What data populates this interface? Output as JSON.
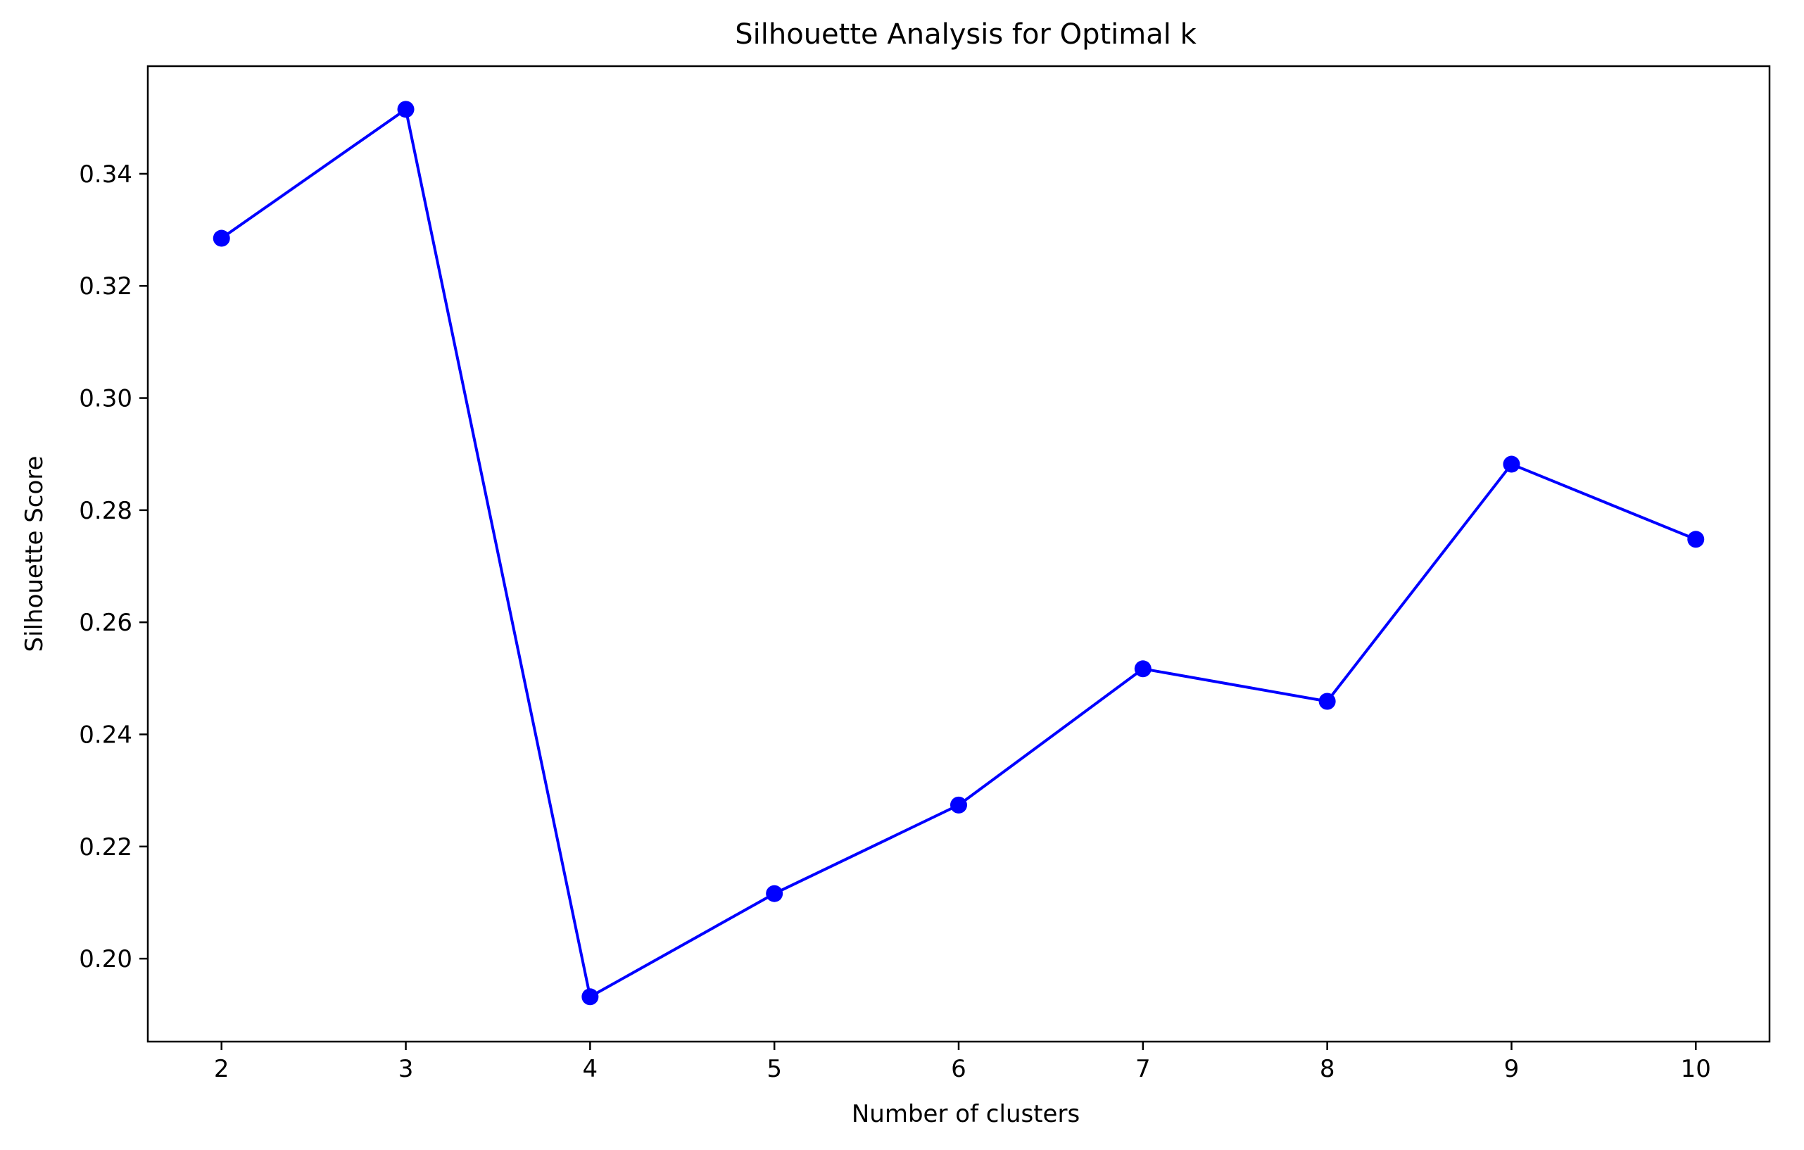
{
  "chart_data": {
    "type": "line",
    "title": "Silhouette Analysis for Optimal k",
    "xlabel": "Number of clusters",
    "ylabel": "Silhouette Score",
    "x": [
      2,
      3,
      4,
      5,
      6,
      7,
      8,
      9,
      10
    ],
    "x_tick_labels": [
      "2",
      "3",
      "4",
      "5",
      "6",
      "7",
      "8",
      "9",
      "10"
    ],
    "y_ticks": [
      0.2,
      0.22,
      0.24,
      0.26,
      0.28,
      0.3,
      0.32,
      0.34
    ],
    "y_tick_labels": [
      "0.20",
      "0.22",
      "0.24",
      "0.26",
      "0.28",
      "0.30",
      "0.32",
      "0.34"
    ],
    "xlim": [
      1.6,
      10.4
    ],
    "ylim": [
      0.1852,
      0.3592
    ],
    "series": [
      {
        "values": [
          0.3285,
          0.3515,
          0.1932,
          0.2116,
          0.2274,
          0.2517,
          0.2459,
          0.2882,
          0.2748
        ],
        "color": "#0000ff",
        "marker": "circle"
      }
    ],
    "grid": false,
    "legend": "none"
  }
}
